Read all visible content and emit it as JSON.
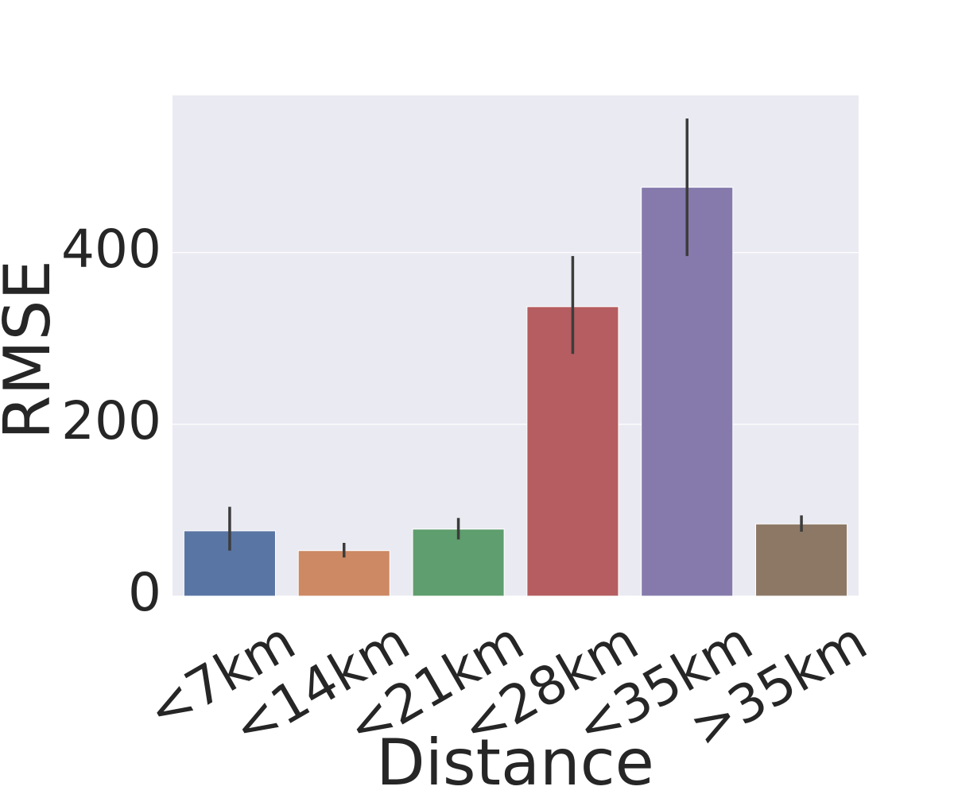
{
  "chart_data": {
    "type": "bar",
    "x_label": "Distance",
    "y_label": "RMSE",
    "categories": [
      "<7km",
      "<14km",
      "<21km",
      "<28km",
      "<35km",
      ">35km"
    ],
    "values": [
      76,
      53,
      78,
      337,
      476,
      84
    ],
    "ci": [
      [
        53,
        104
      ],
      [
        45,
        62
      ],
      [
        66,
        91
      ],
      [
        282,
        396
      ],
      [
        396,
        556
      ],
      [
        75,
        94
      ]
    ],
    "colors": [
      "#5975a4",
      "#cc8963",
      "#5f9e6e",
      "#b55d60",
      "#857aab",
      "#8d7866"
    ],
    "ylim": [
      0,
      583
    ],
    "yticks": [
      0,
      200,
      400
    ],
    "grid": true
  }
}
